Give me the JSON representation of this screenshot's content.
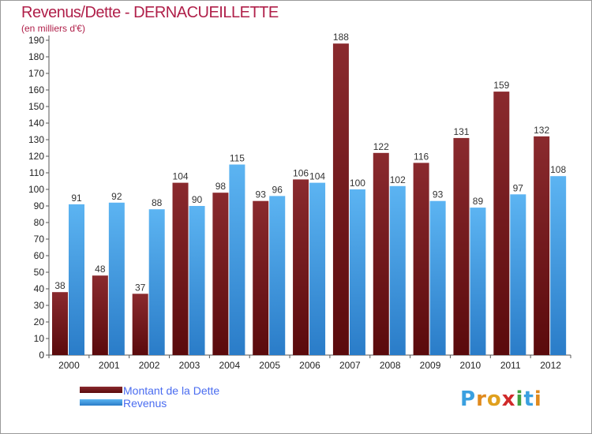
{
  "chart_data": {
    "type": "bar",
    "title": "Revenus/Dette - DERNACUEILLETTE",
    "subtitle": "(en milliers d'€)",
    "categories": [
      "2000",
      "2001",
      "2002",
      "2003",
      "2004",
      "2005",
      "2006",
      "2007",
      "2008",
      "2009",
      "2010",
      "2011",
      "2012"
    ],
    "series": [
      {
        "name": "Montant de la Dette",
        "color": "#7a1518",
        "values": [
          38,
          48,
          37,
          104,
          98,
          93,
          106,
          188,
          122,
          116,
          131,
          159,
          132
        ]
      },
      {
        "name": "Revenus",
        "color": "#3d9ae6",
        "values": [
          91,
          92,
          88,
          90,
          115,
          96,
          104,
          100,
          102,
          93,
          89,
          97,
          108
        ]
      }
    ],
    "ylim": [
      0,
      190
    ],
    "ytick_step": 10,
    "grid": false,
    "legend_position": "bottom-left"
  },
  "logo": {
    "letters": [
      {
        "char": "P",
        "color": "#3aa0e0"
      },
      {
        "char": "r",
        "color": "#e08a1e"
      },
      {
        "char": "o",
        "color": "#e0a01e"
      },
      {
        "char": "x",
        "color": "#d02a2a"
      },
      {
        "char": "i",
        "color": "#40a040"
      },
      {
        "char": "t",
        "color": "#3aa0e0"
      },
      {
        "char": "i",
        "color": "#e08a1e"
      }
    ]
  }
}
